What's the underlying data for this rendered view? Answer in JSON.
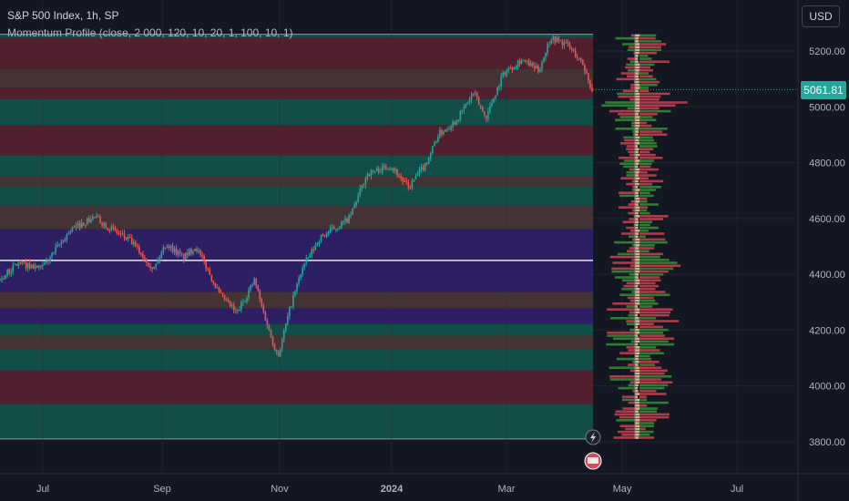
{
  "legend": {
    "title": "S&P 500 Index, 1h, SP",
    "indicator": "Momentum Profile (close, 2 000, 120, 10, 20, 1, 100, 10, 1)"
  },
  "currency": "USD",
  "last_price": "5061.81",
  "colors": {
    "background": "#131722",
    "up": "#26a69a",
    "down": "#ef5350",
    "grid": "#2a2e39",
    "teal_band": "#14534d",
    "brown_band": "#4a3636",
    "purple_band": "#32206d",
    "maroon_band": "#5a2030",
    "profile_green": "#2e7d32",
    "profile_red": "#b2394a",
    "profile_tan": "#d8b48a"
  },
  "chart_data": {
    "type": "candlestick",
    "instrument": "S&P 500 Index",
    "interval": "1h",
    "y_ticks": [
      5200,
      5000,
      4800,
      4600,
      4400,
      4200,
      4000,
      3800
    ],
    "y_tick_labels": [
      "5200.00",
      "5000.00",
      "4800.00",
      "4600.00",
      "4400.00",
      "4200.00",
      "4000.00",
      "3800.00"
    ],
    "x_ticks": [
      "Jul",
      "Sep",
      "Nov",
      "2024",
      "Mar",
      "May",
      "Jul"
    ],
    "ylim": [
      3770,
      5330
    ],
    "last_price": 5061.81,
    "point_of_control": 4450,
    "profile_range": [
      3810,
      5260
    ],
    "price_path": [
      {
        "t": 0,
        "p": 4380
      },
      {
        "t": 0.03,
        "p": 4440
      },
      {
        "t": 0.07,
        "p": 4420
      },
      {
        "t": 0.12,
        "p": 4560
      },
      {
        "t": 0.16,
        "p": 4605
      },
      {
        "t": 0.19,
        "p": 4560
      },
      {
        "t": 0.22,
        "p": 4520
      },
      {
        "t": 0.24,
        "p": 4470
      },
      {
        "t": 0.26,
        "p": 4420
      },
      {
        "t": 0.28,
        "p": 4510
      },
      {
        "t": 0.31,
        "p": 4460
      },
      {
        "t": 0.33,
        "p": 4500
      },
      {
        "t": 0.35,
        "p": 4420
      },
      {
        "t": 0.37,
        "p": 4330
      },
      {
        "t": 0.4,
        "p": 4260
      },
      {
        "t": 0.43,
        "p": 4380
      },
      {
        "t": 0.44,
        "p": 4300
      },
      {
        "t": 0.46,
        "p": 4160
      },
      {
        "t": 0.47,
        "p": 4110
      },
      {
        "t": 0.49,
        "p": 4280
      },
      {
        "t": 0.51,
        "p": 4420
      },
      {
        "t": 0.54,
        "p": 4530
      },
      {
        "t": 0.59,
        "p": 4600
      },
      {
        "t": 0.62,
        "p": 4760
      },
      {
        "t": 0.66,
        "p": 4790
      },
      {
        "t": 0.69,
        "p": 4710
      },
      {
        "t": 0.72,
        "p": 4800
      },
      {
        "t": 0.74,
        "p": 4900
      },
      {
        "t": 0.77,
        "p": 4950
      },
      {
        "t": 0.8,
        "p": 5050
      },
      {
        "t": 0.82,
        "p": 4960
      },
      {
        "t": 0.85,
        "p": 5120
      },
      {
        "t": 0.88,
        "p": 5170
      },
      {
        "t": 0.91,
        "p": 5130
      },
      {
        "t": 0.93,
        "p": 5250
      },
      {
        "t": 0.96,
        "p": 5220
      },
      {
        "t": 0.985,
        "p": 5150
      },
      {
        "t": 1.0,
        "p": 5060
      }
    ]
  }
}
